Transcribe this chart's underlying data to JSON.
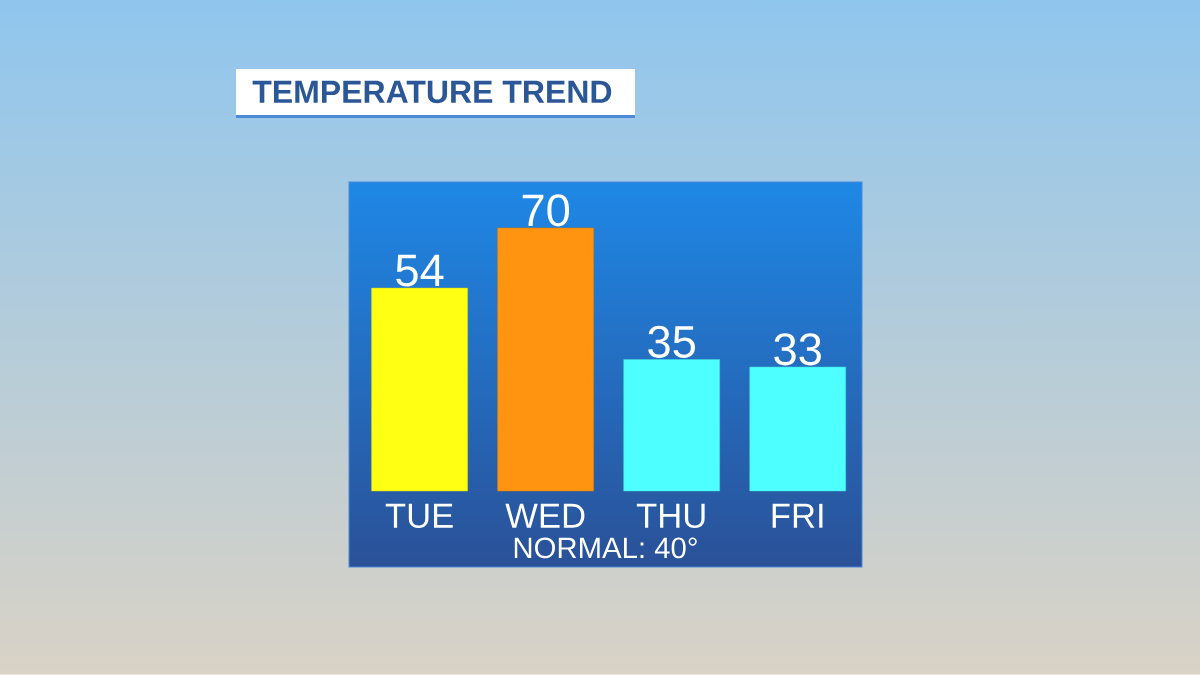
{
  "chart_data": {
    "type": "bar",
    "title": "TEMPERATURE TREND",
    "categories": [
      "TUE",
      "WED",
      "THU",
      "FRI"
    ],
    "values": [
      54,
      70,
      35,
      33
    ],
    "colors": [
      "#ffff14",
      "#ff9410",
      "#4dffff",
      "#4dffff"
    ],
    "data_labels": true,
    "annotations": [
      "NORMAL: 40°"
    ]
  }
}
